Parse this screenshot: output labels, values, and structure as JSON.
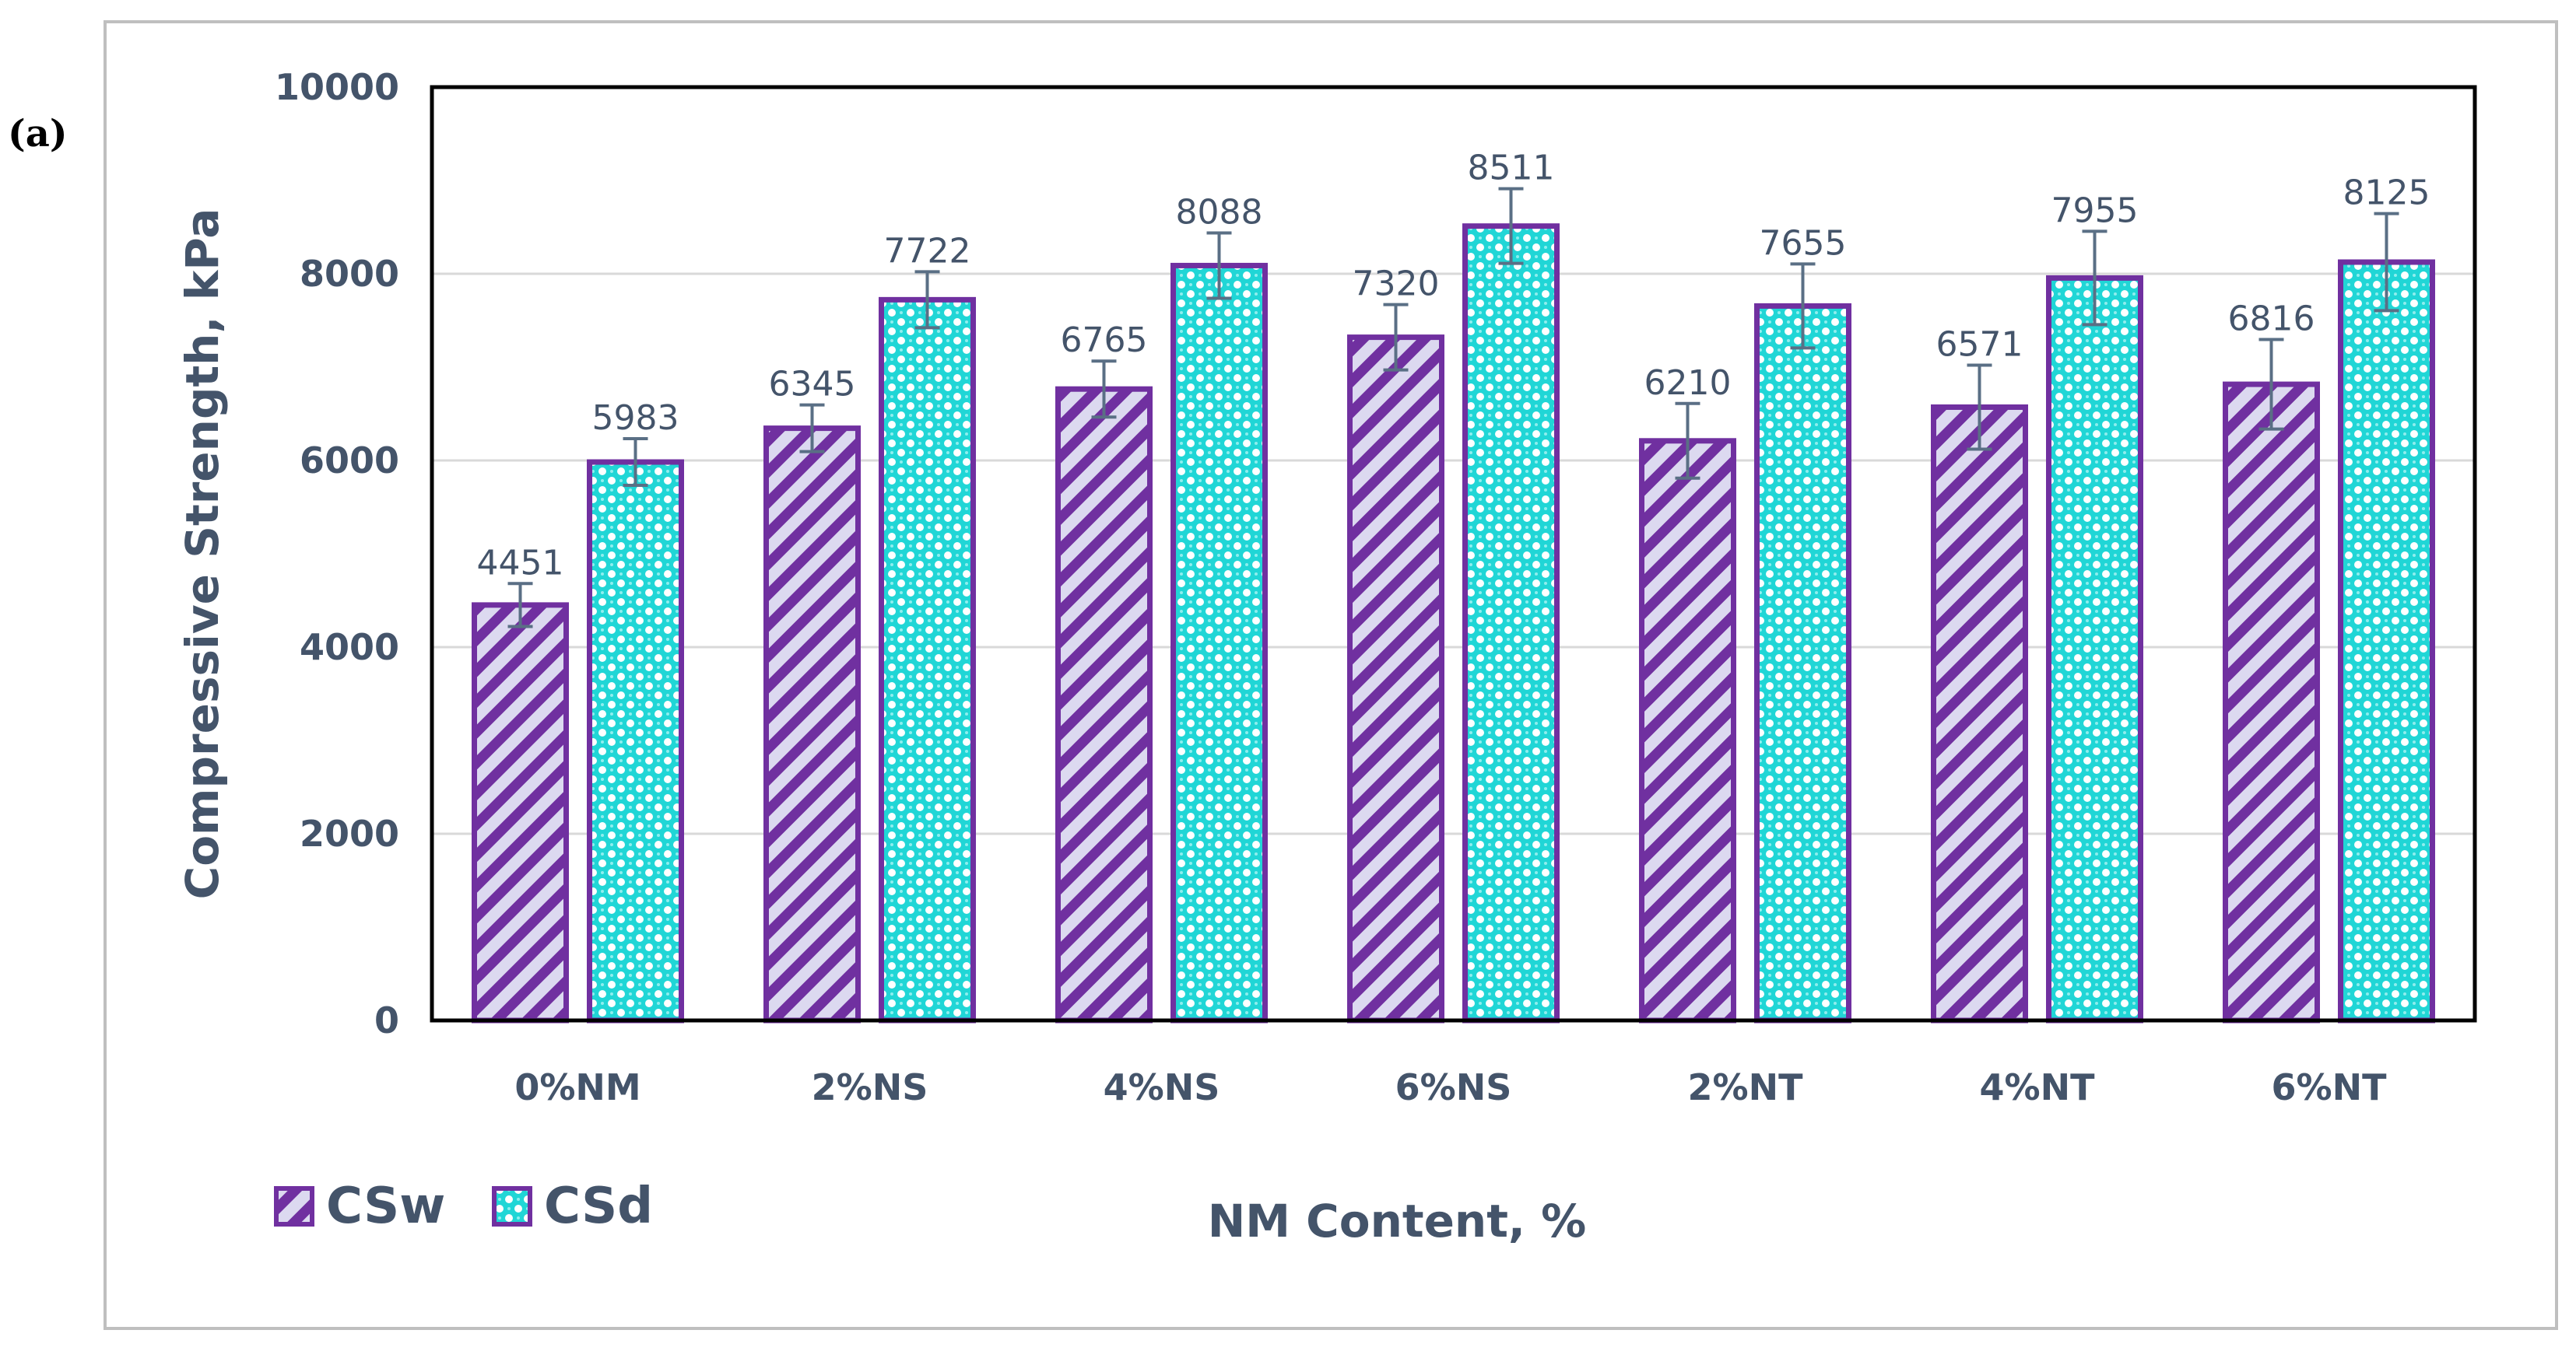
{
  "panel_label": "(a)",
  "chart_data": {
    "type": "bar",
    "categories": [
      "0%NM",
      "2%NS",
      "4%NS",
      "6%NS",
      "2%NT",
      "4%NT",
      "6%NT"
    ],
    "series": [
      {
        "name": "CSw",
        "values": [
          4451,
          6345,
          6765,
          7320,
          6210,
          6571,
          6816
        ],
        "labels": [
          "4451",
          "6345",
          "6765",
          "7320",
          "6210",
          "6571",
          "6816"
        ],
        "errors": [
          230,
          250,
          300,
          350,
          400,
          450,
          480
        ],
        "fill": "#dcd9f0",
        "stroke": "#7030a0",
        "pattern": "diagonal-stripes"
      },
      {
        "name": "CSd",
        "values": [
          5983,
          7722,
          8088,
          8511,
          7655,
          7955,
          8125
        ],
        "labels": [
          "5983",
          "7722",
          "8088",
          "8511",
          "7655",
          "7955",
          "8125"
        ],
        "errors": [
          250,
          300,
          350,
          400,
          450,
          500,
          520
        ],
        "fill": "#20d6d6",
        "stroke": "#7030a0",
        "pattern": "dots"
      }
    ],
    "xlabel": "NM Content, %",
    "ylabel": "Compressive Strength, kPa",
    "ylim": [
      0,
      10000
    ],
    "yticks": [
      0,
      2000,
      4000,
      6000,
      8000,
      10000
    ],
    "ytick_labels": [
      "0",
      "2000",
      "4000",
      "6000",
      "8000",
      "10000"
    ],
    "grid": true,
    "legend_position": "bottom-left",
    "colors": {
      "text": "#44546a",
      "gridline": "#d9d9d9",
      "error_bar": "#5a6f85",
      "frame": "#bfbfbf",
      "plot_border": "#000000"
    }
  }
}
